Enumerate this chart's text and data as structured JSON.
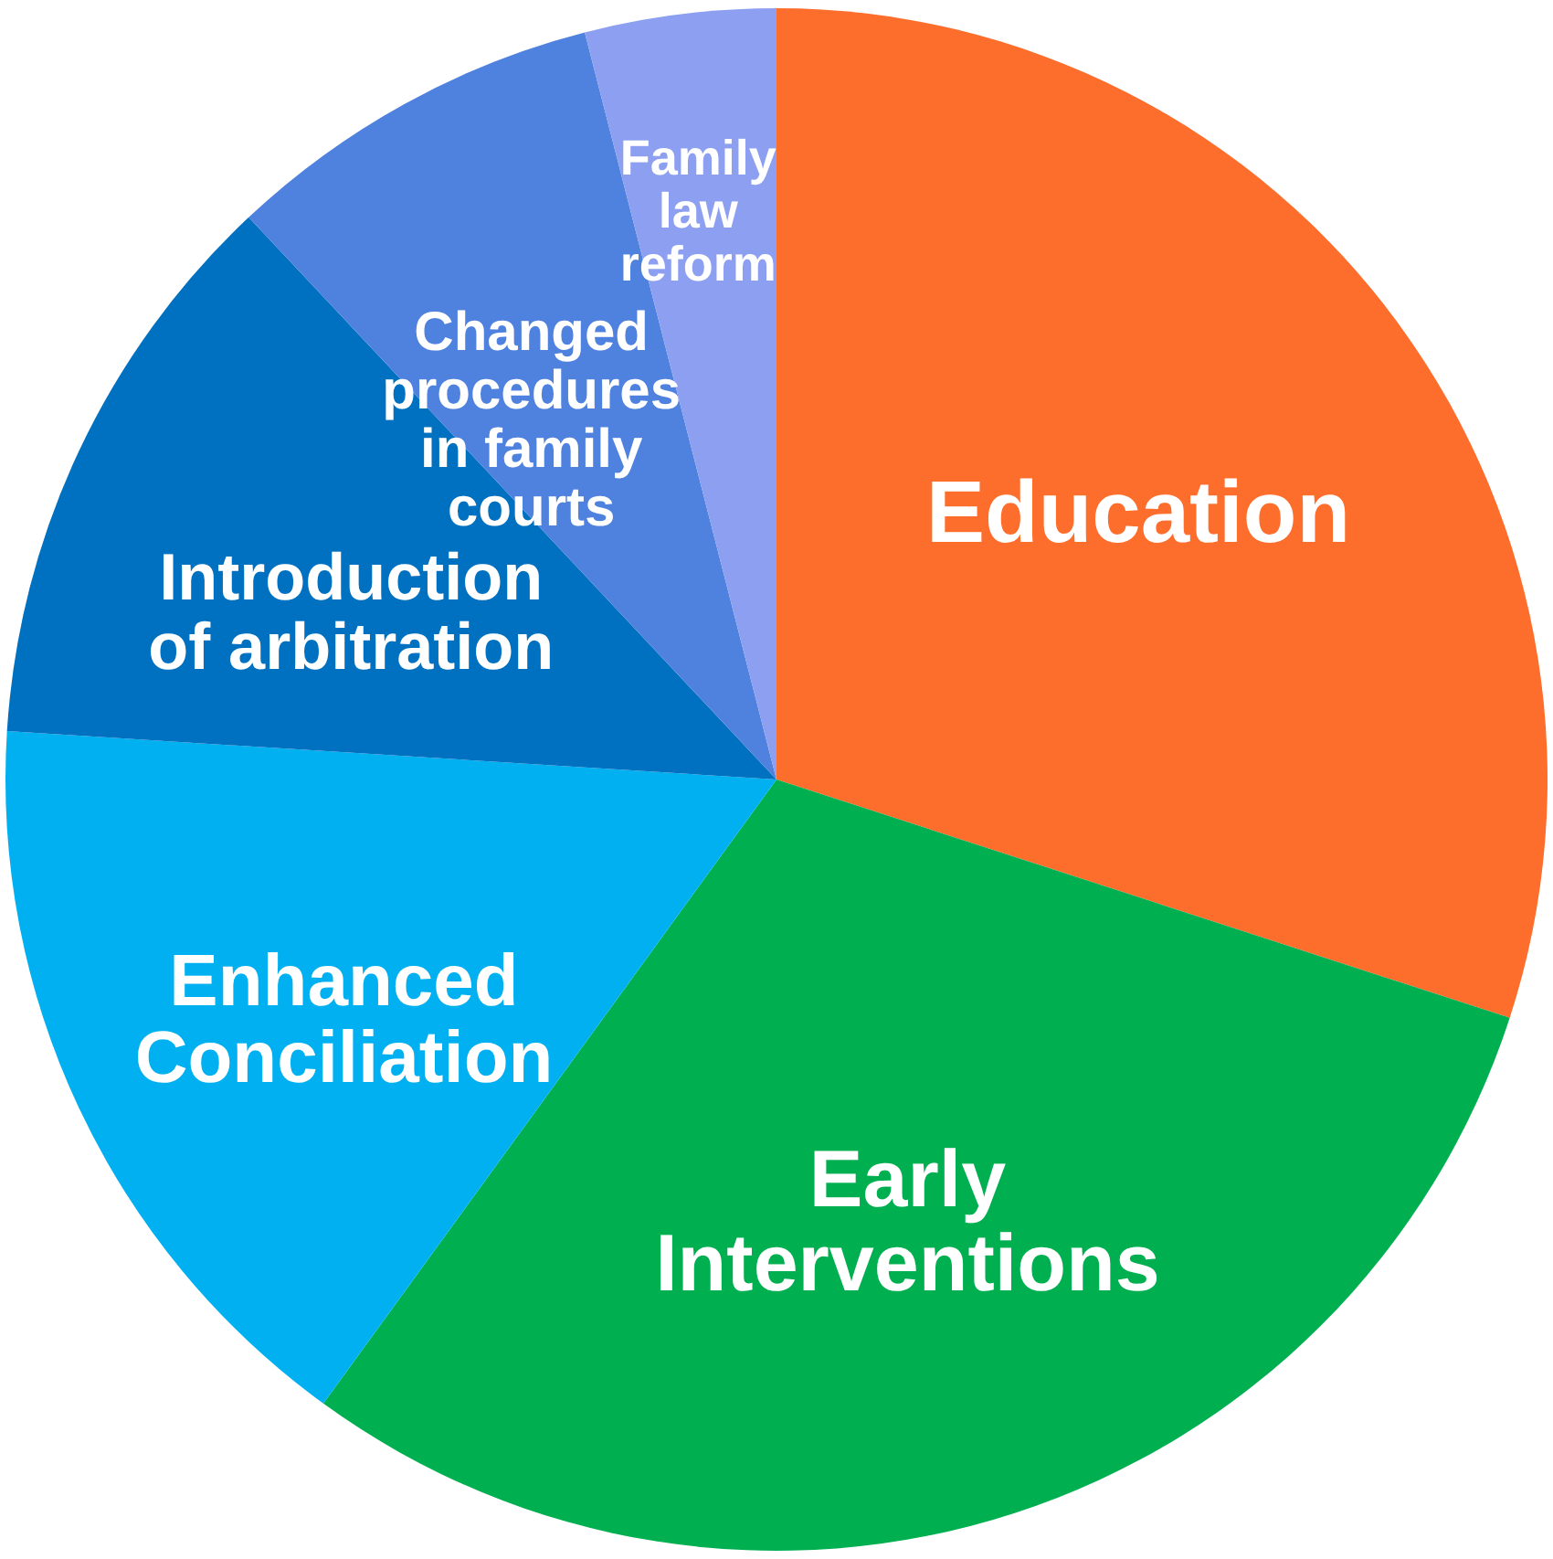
{
  "chart_data": {
    "type": "pie",
    "categories": [
      "Education",
      "Early Interventions",
      "Enhanced Conciliation",
      "Introduction of arbitration",
      "Changed procedures in family courts",
      "Family law reform"
    ],
    "values": [
      30,
      30,
      16,
      12,
      8,
      4
    ],
    "colors": [
      "#fd6d2c",
      "#00b050",
      "#00b0f0",
      "#0070c0",
      "#4f81de",
      "#8d9ff0"
    ]
  }
}
